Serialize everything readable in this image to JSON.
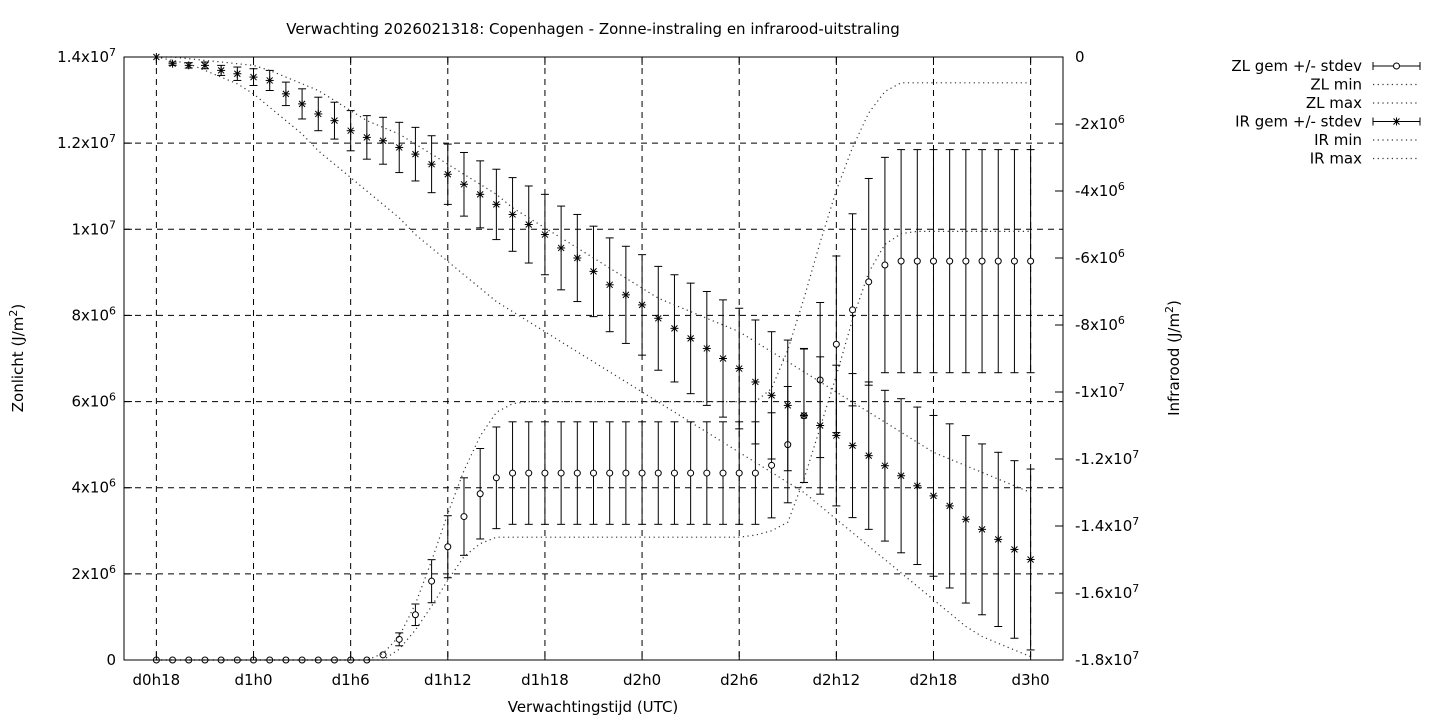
{
  "chart_data": {
    "type": "line",
    "title": "Verwachting 2026021318: Copenhagen - Zonne-instraling en infrarood-uitstraling",
    "xlabel": "Verwachtingstijd (UTC)",
    "ylabel": "Zonlicht (J/m²)",
    "y2label": "Infrarood (J/m²)",
    "x_ticks": [
      {
        "x": 0,
        "label": "d0h18"
      },
      {
        "x": 6,
        "label": "d1h0"
      },
      {
        "x": 12,
        "label": "d1h6"
      },
      {
        "x": 18,
        "label": "d1h12"
      },
      {
        "x": 24,
        "label": "d1h18"
      },
      {
        "x": 30,
        "label": "d2h0"
      },
      {
        "x": 36,
        "label": "d2h6"
      },
      {
        "x": 42,
        "label": "d2h12"
      },
      {
        "x": 48,
        "label": "d2h18"
      },
      {
        "x": 54,
        "label": "d3h0"
      }
    ],
    "xlim": [
      -2,
      56
    ],
    "ylim": [
      0,
      14000000
    ],
    "y2lim": [
      -18000000,
      0
    ],
    "y_ticks": [
      {
        "value": 0,
        "label": "0",
        "mant": "0",
        "exp": ""
      },
      {
        "value": 2000000,
        "label": "2x10^6",
        "mant": "2x10",
        "exp": "6"
      },
      {
        "value": 4000000,
        "label": "4x10^6",
        "mant": "4x10",
        "exp": "6"
      },
      {
        "value": 6000000,
        "label": "6x10^6",
        "mant": "6x10",
        "exp": "6"
      },
      {
        "value": 8000000,
        "label": "8x10^6",
        "mant": "8x10",
        "exp": "6"
      },
      {
        "value": 10000000,
        "label": "1x10^7",
        "mant": "1x10",
        "exp": "7"
      },
      {
        "value": 12000000,
        "label": "1.2x10^7",
        "mant": "1.2x10",
        "exp": "7"
      },
      {
        "value": 14000000,
        "label": "1.4x10^7",
        "mant": "1.4x10",
        "exp": "7"
      }
    ],
    "y2_ticks": [
      {
        "value": 0,
        "label": "0",
        "mant": "0",
        "exp": ""
      },
      {
        "value": -2000000,
        "label": "-2x10^6",
        "mant": "-2x10",
        "exp": "6"
      },
      {
        "value": -4000000,
        "label": "-4x10^6",
        "mant": "-4x10",
        "exp": "6"
      },
      {
        "value": -6000000,
        "label": "-6x10^6",
        "mant": "-6x10",
        "exp": "6"
      },
      {
        "value": -8000000,
        "label": "-8x10^6",
        "mant": "-8x10",
        "exp": "6"
      },
      {
        "value": -10000000,
        "label": "-1x10^7",
        "mant": "-1x10",
        "exp": "7"
      },
      {
        "value": -12000000,
        "label": "-1.2x10^7",
        "mant": "-1.2x10",
        "exp": "7"
      },
      {
        "value": -14000000,
        "label": "-1.4x10^7",
        "mant": "-1.4x10",
        "exp": "7"
      },
      {
        "value": -16000000,
        "label": "-1.6x10^7",
        "mant": "-1.6x10",
        "exp": "7"
      },
      {
        "value": -18000000,
        "label": "-1.8x10^7",
        "mant": "-1.8x10",
        "exp": "7"
      }
    ],
    "grid": true,
    "legend_position": "outside-right-top",
    "legend": [
      {
        "label": "ZL gem +/- stdev",
        "style": "circle-errorbar"
      },
      {
        "label": "ZL min",
        "style": "dotted"
      },
      {
        "label": "ZL max",
        "style": "dotted"
      },
      {
        "label": "IR gem +/- stdev",
        "style": "star-errorbar"
      },
      {
        "label": "IR min",
        "style": "dotted"
      },
      {
        "label": "IR max",
        "style": "dotted"
      }
    ],
    "x": [
      0,
      1,
      2,
      3,
      4,
      5,
      6,
      7,
      8,
      9,
      10,
      11,
      12,
      13,
      14,
      15,
      16,
      17,
      18,
      19,
      20,
      21,
      22,
      23,
      24,
      25,
      26,
      27,
      28,
      29,
      30,
      31,
      32,
      33,
      34,
      35,
      36,
      37,
      38,
      39,
      40,
      41,
      42,
      43,
      44,
      45,
      46,
      47,
      48,
      49,
      50,
      51,
      52,
      53,
      54
    ],
    "series": [
      {
        "name": "ZL gem +/- stdev",
        "axis": "y",
        "marker": "circle",
        "values": [
          0,
          0,
          0,
          0,
          0,
          0,
          0,
          0,
          0,
          0,
          0,
          0,
          0,
          0,
          120000,
          480000,
          1050000,
          1830000,
          2630000,
          3330000,
          3860000,
          4230000,
          4340000,
          4340000,
          4340000,
          4340000,
          4340000,
          4340000,
          4340000,
          4340000,
          4340000,
          4340000,
          4340000,
          4340000,
          4340000,
          4340000,
          4340000,
          4340000,
          4520000,
          5000000,
          5670000,
          6500000,
          7330000,
          8130000,
          8780000,
          9170000,
          9260000,
          9260000,
          9260000,
          9260000,
          9260000,
          9260000,
          9260000,
          9260000,
          9260000
        ],
        "stdev": [
          0,
          0,
          0,
          0,
          0,
          0,
          0,
          0,
          0,
          0,
          0,
          0,
          0,
          0,
          0,
          150000,
          250000,
          500000,
          720000,
          900000,
          1050000,
          1180000,
          1190000,
          1190000,
          1190000,
          1190000,
          1190000,
          1190000,
          1190000,
          1190000,
          1190000,
          1190000,
          1190000,
          1190000,
          1190000,
          1190000,
          1190000,
          1190000,
          1220000,
          1350000,
          1550000,
          1800000,
          2050000,
          2230000,
          2400000,
          2500000,
          2590000,
          2590000,
          2590000,
          2590000,
          2590000,
          2590000,
          2590000,
          2590000,
          2590000
        ]
      },
      {
        "name": "ZL min",
        "axis": "y",
        "style": "dotted",
        "values": [
          0,
          0,
          0,
          0,
          0,
          0,
          0,
          0,
          0,
          0,
          0,
          0,
          0,
          0,
          0,
          250000,
          700000,
          1250000,
          1850000,
          2400000,
          2700000,
          2850000,
          2850000,
          2850000,
          2850000,
          2850000,
          2850000,
          2850000,
          2850000,
          2850000,
          2850000,
          2850000,
          2850000,
          2850000,
          2850000,
          2850000,
          2850000,
          2900000,
          3000000,
          3200000,
          4200000,
          5400000,
          6600000,
          7900000,
          9000000,
          9650000,
          9900000,
          9950000,
          9950000,
          9950000,
          9950000,
          9950000,
          9950000,
          9950000,
          9950000
        ]
      },
      {
        "name": "ZL max",
        "axis": "y",
        "style": "dotted",
        "values": [
          0,
          0,
          0,
          0,
          0,
          0,
          0,
          0,
          0,
          0,
          0,
          0,
          0,
          0,
          150000,
          550000,
          1300000,
          2300000,
          3400000,
          4400000,
          5200000,
          5750000,
          5950000,
          6000000,
          6000000,
          6000000,
          6000000,
          6000000,
          6000000,
          6000000,
          6000000,
          6000000,
          6000000,
          6000000,
          6000000,
          6000000,
          6000000,
          6000000,
          6300000,
          7200000,
          8400000,
          9700000,
          10900000,
          11900000,
          12700000,
          13200000,
          13400000,
          13400000,
          13400000,
          13400000,
          13400000,
          13400000,
          13400000,
          13400000,
          13400000
        ]
      },
      {
        "name": "IR gem +/- stdev",
        "axis": "y2",
        "marker": "star",
        "values": [
          0,
          -200000,
          -250000,
          -250000,
          -400000,
          -500000,
          -600000,
          -700000,
          -1100000,
          -1400000,
          -1700000,
          -1900000,
          -2200000,
          -2400000,
          -2500000,
          -2700000,
          -2900000,
          -3200000,
          -3500000,
          -3800000,
          -4100000,
          -4400000,
          -4700000,
          -5000000,
          -5300000,
          -5700000,
          -6000000,
          -6400000,
          -6800000,
          -7100000,
          -7400000,
          -7800000,
          -8100000,
          -8400000,
          -8700000,
          -9000000,
          -9300000,
          -9700000,
          -10100000,
          -10400000,
          -10700000,
          -11000000,
          -11300000,
          -11600000,
          -11900000,
          -12200000,
          -12500000,
          -12800000,
          -13100000,
          -13400000,
          -13800000,
          -14100000,
          -14400000,
          -14700000,
          -15000000
        ],
        "stdev": [
          0,
          50000,
          80000,
          100000,
          150000,
          200000,
          250000,
          300000,
          350000,
          450000,
          500000,
          550000,
          600000,
          650000,
          700000,
          750000,
          800000,
          850000,
          900000,
          950000,
          1000000,
          1050000,
          1100000,
          1150000,
          1200000,
          1250000,
          1300000,
          1350000,
          1400000,
          1450000,
          1500000,
          1550000,
          1600000,
          1650000,
          1700000,
          1750000,
          1800000,
          1850000,
          1900000,
          1950000,
          2000000,
          2050000,
          2100000,
          2150000,
          2200000,
          2250000,
          2300000,
          2350000,
          2400000,
          2450000,
          2500000,
          2550000,
          2600000,
          2650000,
          2700000
        ]
      },
      {
        "name": "IR min",
        "axis": "y2",
        "style": "dotted",
        "values": [
          0,
          -100000,
          -200000,
          -400000,
          -600000,
          -800000,
          -1100000,
          -1500000,
          -1900000,
          -2300000,
          -2800000,
          -3200000,
          -3600000,
          -4000000,
          -4400000,
          -4800000,
          -5300000,
          -5700000,
          -6100000,
          -6500000,
          -6900000,
          -7300000,
          -7600000,
          -7900000,
          -8200000,
          -8500000,
          -8800000,
          -9100000,
          -9400000,
          -9700000,
          -10000000,
          -10300000,
          -10600000,
          -10900000,
          -11200000,
          -11500000,
          -11800000,
          -12100000,
          -12400000,
          -12700000,
          -13000000,
          -13400000,
          -13800000,
          -14200000,
          -14600000,
          -15000000,
          -15400000,
          -15800000,
          -16200000,
          -16600000,
          -17000000,
          -17300000,
          -17500000,
          -17700000,
          -17900000
        ]
      },
      {
        "name": "IR max",
        "axis": "y2",
        "style": "dotted",
        "values": [
          0,
          0,
          -50000,
          -100000,
          -150000,
          -200000,
          -250000,
          -400000,
          -600000,
          -800000,
          -1000000,
          -1300000,
          -1600000,
          -1900000,
          -2100000,
          -2300000,
          -2600000,
          -2900000,
          -3200000,
          -3500000,
          -3800000,
          -4100000,
          -4500000,
          -4800000,
          -5100000,
          -5400000,
          -5700000,
          -6000000,
          -6300000,
          -6600000,
          -6900000,
          -7200000,
          -7400000,
          -7600000,
          -7800000,
          -8000000,
          -8200000,
          -8500000,
          -8800000,
          -9100000,
          -9400000,
          -9700000,
          -10000000,
          -10300000,
          -10600000,
          -10900000,
          -11200000,
          -11500000,
          -11800000,
          -12000000,
          -12200000,
          -12400000,
          -12600000,
          -12800000,
          -13000000
        ]
      }
    ]
  }
}
